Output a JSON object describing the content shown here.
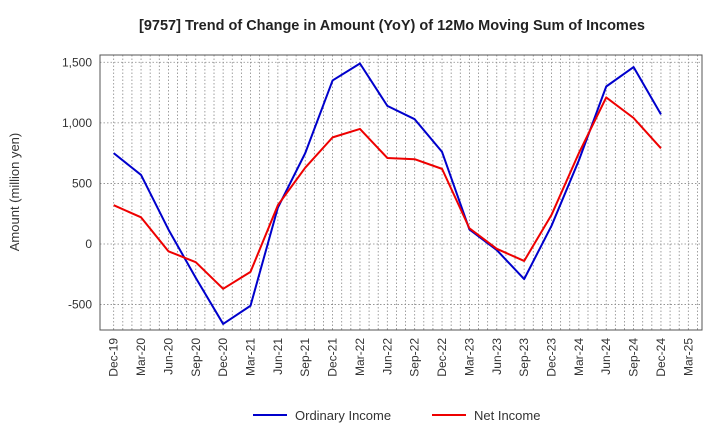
{
  "chart_data": {
    "type": "line",
    "title": "[9757]  Trend of Change in Amount (YoY) of 12Mo Moving Sum of Incomes",
    "xlabel": "",
    "ylabel": "Amount (million yen)",
    "ylim": [
      -710,
      1560
    ],
    "yticks": [
      -500,
      0,
      500,
      1000,
      1500
    ],
    "ytick_labels": [
      "-500",
      "0",
      "500",
      "1,000",
      "1,500"
    ],
    "grid": true,
    "legend_position": "bottom-center",
    "categories": [
      "Dec-19",
      "Mar-20",
      "Jun-20",
      "Sep-20",
      "Dec-20",
      "Mar-21",
      "Jun-21",
      "Sep-21",
      "Dec-21",
      "Mar-22",
      "Jun-22",
      "Sep-22",
      "Dec-22",
      "Mar-23",
      "Jun-23",
      "Sep-23",
      "Dec-23",
      "Mar-24",
      "Jun-24",
      "Sep-24",
      "Dec-24",
      "Mar-25"
    ],
    "series": [
      {
        "name": "Ordinary Income",
        "color": "#0000cc",
        "values": [
          750,
          570,
          120,
          -280,
          -660,
          -510,
          300,
          750,
          1350,
          1490,
          1140,
          1030,
          760,
          120,
          -50,
          -290,
          150,
          690,
          1300,
          1460,
          1070,
          null
        ]
      },
      {
        "name": "Net Income",
        "color": "#ee0000",
        "values": [
          320,
          220,
          -60,
          -150,
          -370,
          -230,
          320,
          630,
          880,
          950,
          710,
          700,
          620,
          130,
          -40,
          -140,
          240,
          750,
          1210,
          1040,
          790,
          null
        ]
      }
    ]
  }
}
